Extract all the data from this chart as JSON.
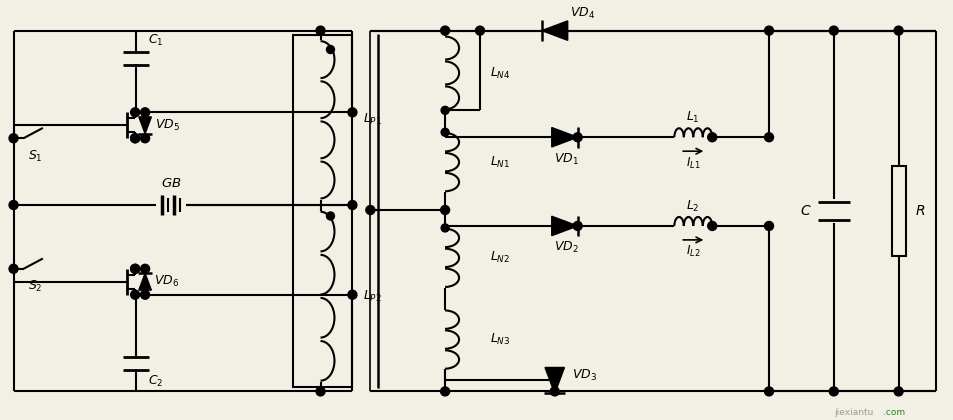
{
  "figsize": [
    9.54,
    4.2
  ],
  "dpi": 100,
  "bg_color": "#f2efe4",
  "line_color": "black",
  "line_width": 1.5,
  "text_color": "black"
}
